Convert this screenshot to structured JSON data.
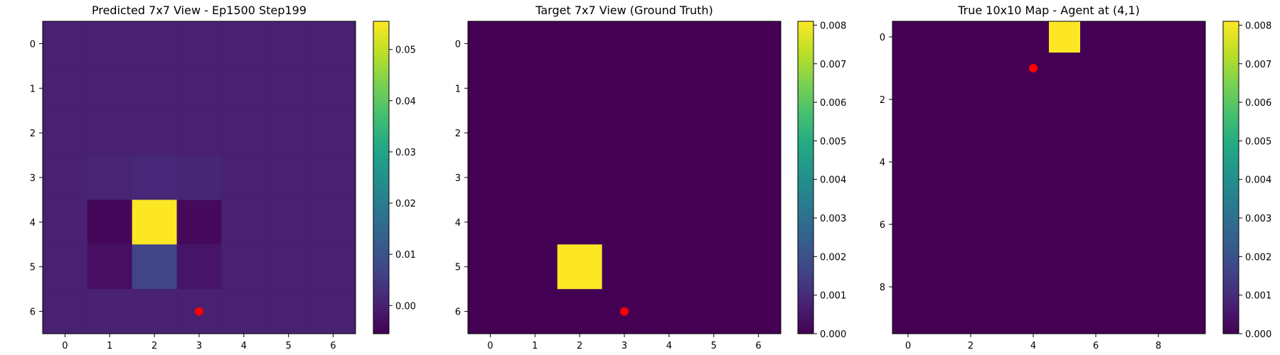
{
  "chart_data": [
    {
      "type": "heatmap",
      "title": "Predicted 7x7 View - Ep1500 Step199",
      "rows": 7,
      "cols": 7,
      "xticks": [
        0,
        1,
        2,
        3,
        4,
        5,
        6
      ],
      "yticks": [
        0,
        1,
        2,
        3,
        4,
        5,
        6
      ],
      "matrix": [
        [
          0.0,
          0.0,
          0.0,
          0.0,
          0.0,
          0.0,
          0.0
        ],
        [
          0.0,
          0.0,
          0.0,
          0.0,
          0.0,
          0.0,
          0.0
        ],
        [
          0.0,
          0.0,
          0.0,
          0.0,
          0.0,
          0.0,
          0.0
        ],
        [
          0.0,
          0.0006,
          0.0012,
          0.001,
          0.0,
          0.0,
          0.0
        ],
        [
          0.0,
          -0.0045,
          0.0555,
          -0.004,
          0.0,
          0.0,
          0.0
        ],
        [
          0.0,
          -0.003,
          0.0068,
          -0.002,
          0.0,
          0.0,
          0.0
        ],
        [
          0.0,
          0.0,
          0.0,
          0.0,
          0.0,
          0.0,
          0.0
        ]
      ],
      "vmin": -0.0055,
      "vmax": 0.0555,
      "colorbar_ticks": [
        0.0,
        0.01,
        0.02,
        0.03,
        0.04,
        0.05
      ],
      "colorbar_labels": [
        "0.00",
        "0.01",
        "0.02",
        "0.03",
        "0.04",
        "0.05"
      ],
      "marker": {
        "x": 3,
        "y": 6,
        "color": "#ff0000"
      }
    },
    {
      "type": "heatmap",
      "title": "Target 7x7 View (Ground Truth)",
      "rows": 7,
      "cols": 7,
      "xticks": [
        0,
        1,
        2,
        3,
        4,
        5,
        6
      ],
      "yticks": [
        0,
        1,
        2,
        3,
        4,
        5,
        6
      ],
      "matrix": [
        [
          0,
          0,
          0,
          0,
          0,
          0,
          0
        ],
        [
          0,
          0,
          0,
          0,
          0,
          0,
          0
        ],
        [
          0,
          0,
          0,
          0,
          0,
          0,
          0
        ],
        [
          0,
          0,
          0,
          0,
          0,
          0,
          0
        ],
        [
          0,
          0,
          0,
          0,
          0,
          0,
          0
        ],
        [
          0,
          0,
          0.0081,
          0,
          0,
          0,
          0
        ],
        [
          0,
          0,
          0,
          0,
          0,
          0,
          0
        ]
      ],
      "vmin": 0.0,
      "vmax": 0.0081,
      "colorbar_ticks": [
        0.0,
        0.001,
        0.002,
        0.003,
        0.004,
        0.005,
        0.006,
        0.007,
        0.008
      ],
      "colorbar_labels": [
        "0.000",
        "0.001",
        "0.002",
        "0.003",
        "0.004",
        "0.005",
        "0.006",
        "0.007",
        "0.008"
      ],
      "marker": {
        "x": 3,
        "y": 6,
        "color": "#ff0000"
      }
    },
    {
      "type": "heatmap",
      "title": "True 10x10 Map - Agent at (4,1)",
      "rows": 10,
      "cols": 10,
      "xticks": [
        0,
        2,
        4,
        6,
        8
      ],
      "yticks": [
        0,
        2,
        4,
        6,
        8
      ],
      "matrix": [
        [
          0,
          0,
          0,
          0,
          0,
          0.0081,
          0,
          0,
          0,
          0
        ],
        [
          0,
          0,
          0,
          0,
          0,
          0,
          0,
          0,
          0,
          0
        ],
        [
          0,
          0,
          0,
          0,
          0,
          0,
          0,
          0,
          0,
          0
        ],
        [
          0,
          0,
          0,
          0,
          0,
          0,
          0,
          0,
          0,
          0
        ],
        [
          0,
          0,
          0,
          0,
          0,
          0,
          0,
          0,
          0,
          0
        ],
        [
          0,
          0,
          0,
          0,
          0,
          0,
          0,
          0,
          0,
          0
        ],
        [
          0,
          0,
          0,
          0,
          0,
          0,
          0,
          0,
          0,
          0
        ],
        [
          0,
          0,
          0,
          0,
          0,
          0,
          0,
          0,
          0,
          0
        ],
        [
          0,
          0,
          0,
          0,
          0,
          0,
          0,
          0,
          0,
          0
        ],
        [
          0,
          0,
          0,
          0,
          0,
          0,
          0,
          0,
          0,
          0
        ]
      ],
      "vmin": 0.0,
      "vmax": 0.0081,
      "colorbar_ticks": [
        0.0,
        0.001,
        0.002,
        0.003,
        0.004,
        0.005,
        0.006,
        0.007,
        0.008
      ],
      "colorbar_labels": [
        "0.000",
        "0.001",
        "0.002",
        "0.003",
        "0.004",
        "0.005",
        "0.006",
        "0.007",
        "0.008"
      ],
      "marker": {
        "x": 4,
        "y": 1,
        "color": "#ff0000"
      }
    }
  ]
}
